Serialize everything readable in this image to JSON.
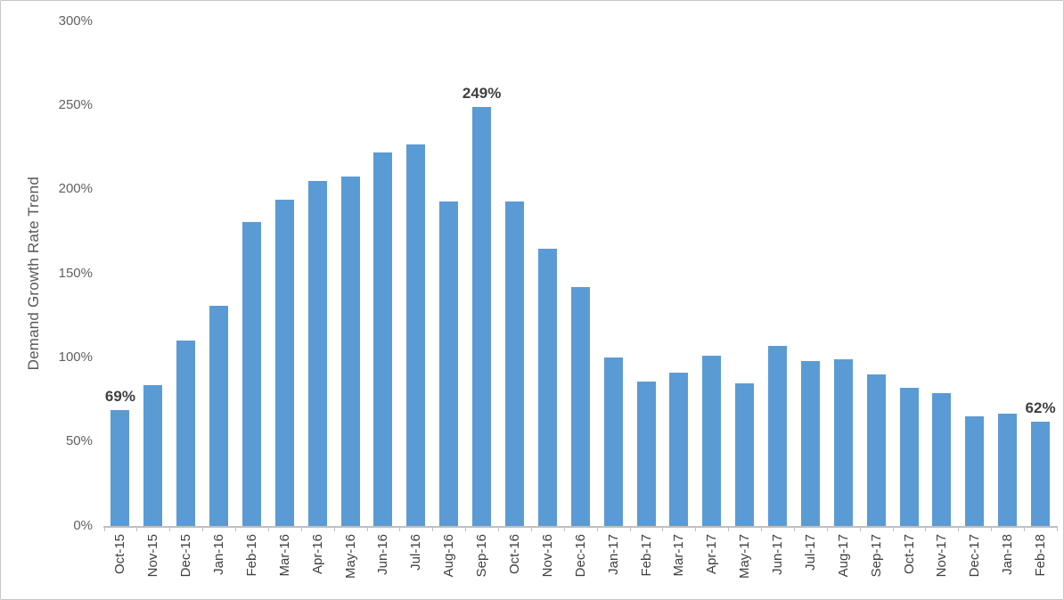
{
  "chart_data": {
    "type": "bar",
    "title": "",
    "xlabel": "",
    "ylabel": "Demand Growth Rate Trend",
    "categories": [
      "Oct-15",
      "Nov-15",
      "Dec-15",
      "Jan-16",
      "Feb-16",
      "Mar-16",
      "Apr-16",
      "May-16",
      "Jun-16",
      "Jul-16",
      "Aug-16",
      "Sep-16",
      "Oct-16",
      "Nov-16",
      "Dec-16",
      "Jan-17",
      "Feb-17",
      "Mar-17",
      "Apr-17",
      "May-17",
      "Jun-17",
      "Jul-17",
      "Aug-17",
      "Sep-17",
      "Oct-17",
      "Nov-17",
      "Dec-17",
      "Jan-18",
      "Feb-18"
    ],
    "values": [
      69,
      84,
      110,
      131,
      181,
      194,
      205,
      208,
      222,
      227,
      193,
      249,
      193,
      165,
      142,
      100,
      86,
      91,
      101,
      85,
      107,
      98,
      99,
      90,
      82,
      79,
      65,
      67,
      62
    ],
    "value_unit": "%",
    "ylim": [
      0,
      300
    ],
    "yticks": [
      0,
      50,
      100,
      150,
      200,
      250,
      300
    ],
    "ytick_suffix": "%",
    "grid": false,
    "legend": "none",
    "data_labels": [
      {
        "index": 0,
        "category": "Oct-15",
        "text": "69%"
      },
      {
        "index": 11,
        "category": "Sep-16",
        "text": "249%"
      },
      {
        "index": 28,
        "category": "Feb-18",
        "text": "62%"
      }
    ]
  },
  "colors": {
    "bar": "#5B9BD5",
    "axis_line": "#BFBFBF",
    "y_tick_text": "#616161",
    "x_tick_text": "#404040",
    "axis_title_text": "#595959",
    "data_label_text": "#3F3F3F",
    "canvas_border": "#C6C6C6",
    "background": "#FFFFFF"
  }
}
